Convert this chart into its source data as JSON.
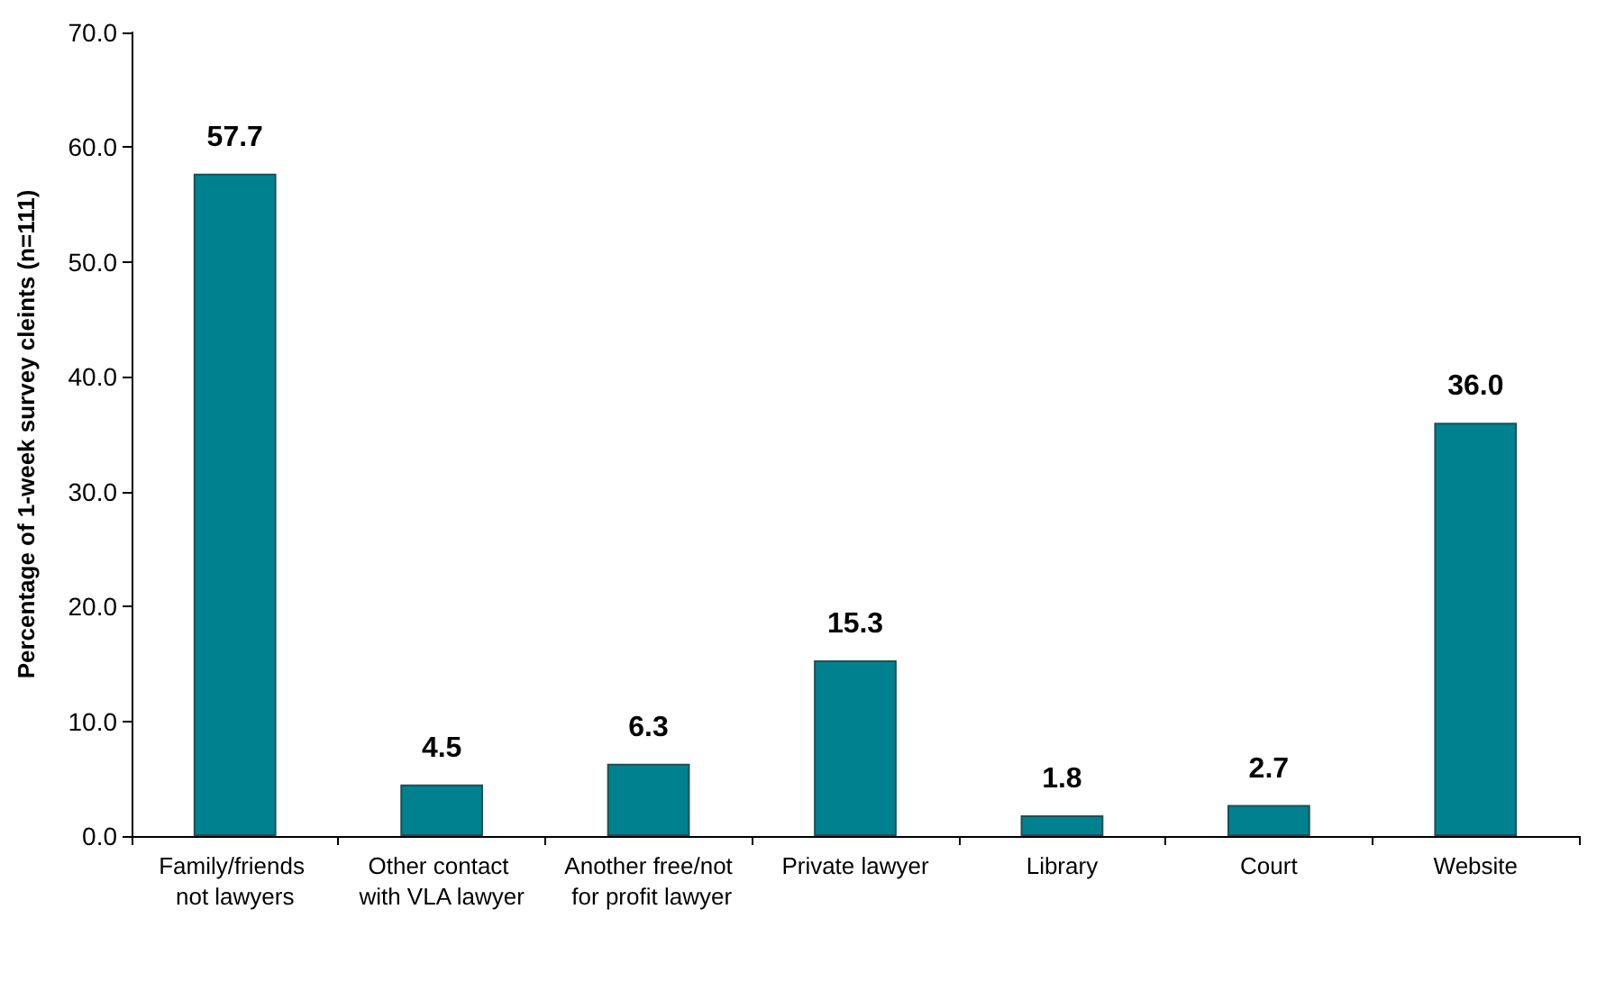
{
  "chart_data": {
    "type": "bar",
    "ylabel": "Percentage of 1-week survey cleints (n=111)",
    "categories": [
      "Family/friends not lawyers",
      "Other contact with VLA lawyer",
      "Another free/not for profit lawyer",
      "Private lawyer",
      "Library",
      "Court",
      "Website"
    ],
    "values": [
      57.7,
      4.5,
      6.3,
      15.3,
      1.8,
      2.7,
      36.0
    ],
    "value_labels": [
      "57.7",
      "4.5",
      "6.3",
      "15.3",
      "1.8",
      "2.7",
      "36.0"
    ],
    "color": "#00818f",
    "ylim": [
      0,
      70
    ],
    "yticks": [
      {
        "value": 0,
        "label": "0.0"
      },
      {
        "value": 10,
        "label": "10.0"
      },
      {
        "value": 20,
        "label": "20.0"
      },
      {
        "value": 30,
        "label": "30.0"
      },
      {
        "value": 40,
        "label": "40.0"
      },
      {
        "value": 50,
        "label": "50.0"
      },
      {
        "value": 60,
        "label": "60.0"
      },
      {
        "value": 70,
        "label": "70.0"
      }
    ],
    "grid": false
  }
}
